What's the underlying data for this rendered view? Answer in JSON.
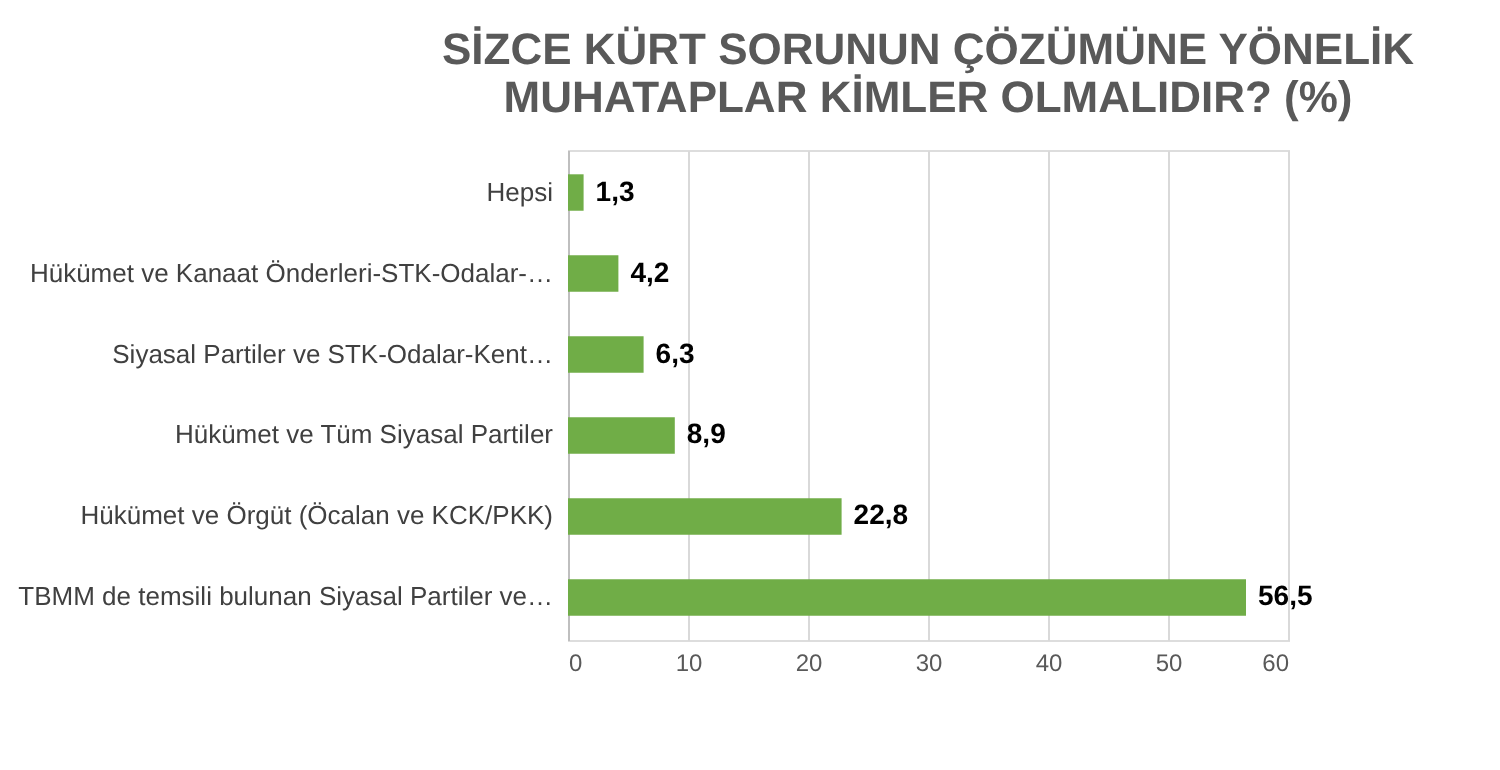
{
  "chart_data": {
    "type": "bar",
    "orientation": "horizontal",
    "title": "SİZCE KÜRT SORUNUN ÇÖZÜMÜNE YÖNELİK MUHATAPLAR KİMLER OLMALIDIR? (%)",
    "categories": [
      "Hepsi",
      "Hükümet ve Kanaat Önderleri-STK-Odalar-…",
      "Siyasal Partiler ve STK-Odalar-Kent…",
      "Hükümet ve Tüm Siyasal Partiler",
      "Hükümet ve Örgüt (Öcalan ve KCK/PKK)",
      "TBMM de temsili bulunan Siyasal Partiler ve…"
    ],
    "values": [
      1.3,
      4.2,
      6.3,
      8.9,
      22.8,
      56.5
    ],
    "value_labels": [
      "1,3",
      "4,2",
      "6,3",
      "8,9",
      "22,8",
      "56,5"
    ],
    "color": "#70ad47",
    "xlim": [
      0,
      60
    ],
    "xticks": [
      0,
      10,
      20,
      30,
      40,
      50,
      60
    ],
    "grid": "x"
  }
}
